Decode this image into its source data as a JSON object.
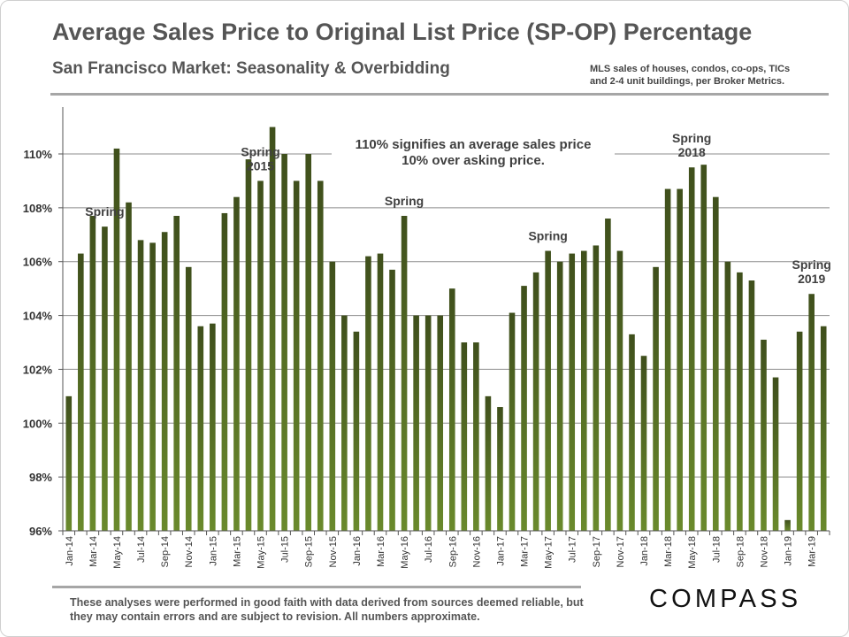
{
  "header": {
    "title": "Average Sales Price to Original List Price (SP-OP) Percentage",
    "subtitle": "San Francisco Market: Seasonality & Overbidding",
    "source_line1": "MLS sales of houses, condos, co-ops, TICs",
    "source_line2": "and 2-4 unit buildings,  per Broker Metrics."
  },
  "footer": {
    "disclaimer": "These analyses were performed in good faith with data derived from sources deemed reliable, but they may contain errors and are subject to revision. All numbers approximate.",
    "logo": "COMPASS"
  },
  "chart_data": {
    "type": "bar",
    "ylim": [
      96,
      111.5
    ],
    "yticks": [
      96,
      98,
      100,
      102,
      104,
      106,
      108,
      110
    ],
    "ytick_labels": [
      "96%",
      "98%",
      "100%",
      "102%",
      "104%",
      "106%",
      "108%",
      "110%"
    ],
    "grid": true,
    "bar_color": "#3f4f1c",
    "bar_color_light": "#6a8a2c",
    "categories": [
      "Jan-14",
      "Feb-14",
      "Mar-14",
      "Apr-14",
      "May-14",
      "Jun-14",
      "Jul-14",
      "Aug-14",
      "Sep-14",
      "Oct-14",
      "Nov-14",
      "Dec-14",
      "Jan-15",
      "Feb-15",
      "Mar-15",
      "Apr-15",
      "May-15",
      "Jun-15",
      "Jul-15",
      "Aug-15",
      "Sep-15",
      "Oct-15",
      "Nov-15",
      "Dec-15",
      "Jan-16",
      "Feb-16",
      "Mar-16",
      "Apr-16",
      "May-16",
      "Jun-16",
      "Jul-16",
      "Aug-16",
      "Sep-16",
      "Oct-16",
      "Nov-16",
      "Dec-16",
      "Jan-17",
      "Feb-17",
      "Mar-17",
      "Apr-17",
      "May-17",
      "Jun-17",
      "Jul-17",
      "Aug-17",
      "Sep-17",
      "Oct-17",
      "Nov-17",
      "Dec-17",
      "Jan-18",
      "Feb-18",
      "Mar-18",
      "Apr-18",
      "May-18",
      "Jun-18",
      "Jul-18",
      "Aug-18",
      "Sep-18",
      "Oct-18",
      "Nov-18",
      "Dec-18",
      "Jan-19",
      "Feb-19",
      "Mar-19",
      "Apr-19"
    ],
    "values": [
      101.0,
      106.3,
      107.7,
      107.3,
      110.2,
      108.2,
      106.8,
      106.7,
      107.1,
      107.7,
      105.8,
      103.6,
      103.7,
      107.8,
      108.4,
      109.8,
      109.0,
      111.0,
      110.0,
      109.0,
      110.0,
      109.0,
      106.0,
      104.0,
      103.4,
      106.2,
      106.3,
      105.7,
      107.7,
      104.0,
      104.0,
      104.0,
      105.0,
      103.0,
      103.0,
      101.0,
      100.6,
      104.1,
      105.1,
      105.6,
      106.4,
      106.0,
      106.3,
      106.4,
      106.6,
      107.6,
      106.4,
      103.3,
      102.5,
      105.8,
      108.7,
      108.7,
      109.5,
      109.6,
      108.4,
      106.0,
      105.6,
      105.3,
      103.1,
      101.7,
      96.4,
      103.4,
      104.8,
      103.6
    ],
    "x_tick_labels": [
      "Jan-14",
      "Mar-14",
      "May-14",
      "Jul-14",
      "Sep-14",
      "Nov-14",
      "Jan-15",
      "Mar-15",
      "May-15",
      "Jul-15",
      "Sep-15",
      "Nov-15",
      "Jan-16",
      "Mar-16",
      "May-16",
      "Jul-16",
      "Sep-16",
      "Nov-16",
      "Jan-17",
      "Mar-17",
      "May-17",
      "Jul-17",
      "Sep-17",
      "Nov-17",
      "Jan-18",
      "Mar-18",
      "May-18",
      "Jul-18",
      "Sep-18",
      "Nov-18",
      "Jan-19",
      "Mar-19"
    ],
    "annotations": [
      {
        "lines": [
          "Spring"
        ],
        "bar_index": 3
      },
      {
        "lines": [
          "Spring",
          "2015"
        ],
        "bar_index": 16
      },
      {
        "lines": [
          "Spring"
        ],
        "bar_index": 28
      },
      {
        "lines": [
          "Spring"
        ],
        "bar_index": 40
      },
      {
        "lines": [
          "Spring",
          "2018"
        ],
        "bar_index": 52
      },
      {
        "lines": [
          "Spring",
          "2019"
        ],
        "bar_index": 62
      }
    ],
    "note": [
      "110% signifies an average sales price",
      "10% over asking price."
    ]
  }
}
